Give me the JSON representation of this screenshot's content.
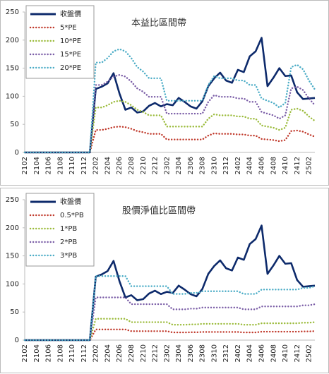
{
  "chart_data": [
    {
      "type": "line",
      "title": "本益比區間帶",
      "categories": [
        "2102",
        null,
        "2104",
        null,
        "2106",
        null,
        "2108",
        null,
        "2110",
        null,
        "2112",
        null,
        "2202",
        null,
        "2204",
        null,
        "2206",
        null,
        "2208",
        null,
        "2210",
        null,
        "2212",
        null,
        "2302",
        null,
        "2304",
        null,
        "2306",
        null,
        "2308",
        null,
        "2310",
        null,
        "2312",
        null,
        "2402",
        null,
        "2404",
        null,
        "2406",
        null,
        "2408",
        null,
        "2410",
        null,
        "2412",
        null,
        "2502",
        null
      ],
      "ylim": [
        0,
        250
      ],
      "yticks": [
        0,
        50,
        100,
        150,
        200,
        250
      ],
      "grid": false,
      "legend": "upper left",
      "series": [
        {
          "name": "收盤價",
          "color": "#0d2a6b",
          "style": "solid",
          "values": [
            0,
            0,
            0,
            0,
            0,
            0,
            0,
            0,
            0,
            0,
            0,
            0,
            113,
            117,
            123,
            141,
            105,
            76,
            80,
            71,
            73,
            83,
            88,
            82,
            86,
            84,
            97,
            90,
            82,
            78,
            91,
            118,
            132,
            142,
            128,
            124,
            147,
            143,
            171,
            180,
            204,
            118,
            133,
            150,
            136,
            137,
            107,
            95,
            96,
            97
          ]
        },
        {
          "name": "5*PE",
          "color": "#c0392b",
          "style": "dotted",
          "values": [
            0,
            0,
            0,
            0,
            0,
            0,
            0,
            0,
            0,
            0,
            0,
            0,
            40,
            40,
            42,
            45,
            46,
            45,
            42,
            38,
            36,
            33,
            33,
            33,
            23,
            23,
            23,
            23,
            23,
            23,
            23,
            30,
            34,
            33,
            33,
            33,
            32,
            32,
            30,
            30,
            24,
            23,
            22,
            20,
            22,
            38,
            39,
            37,
            32,
            28
          ]
        },
        {
          "name": "10*PE",
          "color": "#9bbb3b",
          "style": "dotted",
          "values": [
            0,
            0,
            0,
            0,
            0,
            0,
            0,
            0,
            0,
            0,
            0,
            0,
            80,
            80,
            84,
            90,
            92,
            90,
            84,
            76,
            72,
            66,
            66,
            66,
            46,
            46,
            46,
            46,
            46,
            46,
            46,
            60,
            68,
            66,
            66,
            66,
            64,
            64,
            60,
            60,
            48,
            46,
            44,
            40,
            44,
            76,
            78,
            74,
            64,
            56
          ]
        },
        {
          "name": "15*PE",
          "color": "#7b5ea7",
          "style": "dotted",
          "values": [
            0,
            0,
            0,
            0,
            0,
            0,
            0,
            0,
            0,
            0,
            0,
            0,
            120,
            120,
            126,
            135,
            138,
            135,
            126,
            114,
            108,
            99,
            99,
            99,
            69,
            69,
            69,
            69,
            69,
            69,
            69,
            90,
            102,
            99,
            99,
            99,
            96,
            96,
            90,
            90,
            72,
            69,
            66,
            60,
            66,
            114,
            117,
            111,
            96,
            84
          ]
        },
        {
          "name": "20*PE",
          "color": "#4bacc6",
          "style": "dotted",
          "values": [
            0,
            0,
            0,
            0,
            0,
            0,
            0,
            0,
            0,
            0,
            0,
            0,
            160,
            160,
            168,
            180,
            184,
            180,
            168,
            152,
            144,
            132,
            132,
            132,
            92,
            92,
            92,
            92,
            92,
            92,
            92,
            120,
            136,
            132,
            132,
            132,
            128,
            128,
            120,
            120,
            96,
            92,
            88,
            80,
            88,
            152,
            156,
            148,
            128,
            112
          ]
        }
      ]
    },
    {
      "type": "line",
      "title": "股價淨值比區間帶",
      "categories": [
        "2102",
        null,
        "2104",
        null,
        "2106",
        null,
        "2108",
        null,
        "2110",
        null,
        "2112",
        null,
        "2202",
        null,
        "2204",
        null,
        "2206",
        null,
        "2208",
        null,
        "2210",
        null,
        "2212",
        null,
        "2302",
        null,
        "2304",
        null,
        "2306",
        null,
        "2308",
        null,
        "2310",
        null,
        "2312",
        null,
        "2402",
        null,
        "2404",
        null,
        "2406",
        null,
        "2408",
        null,
        "2410",
        null,
        "2412",
        null,
        "2502",
        null
      ],
      "ylim": [
        0,
        250
      ],
      "yticks": [
        0,
        50,
        100,
        150,
        200,
        250
      ],
      "grid": false,
      "legend": "upper left",
      "series": [
        {
          "name": "收盤價",
          "color": "#0d2a6b",
          "style": "solid",
          "values": [
            0,
            0,
            0,
            0,
            0,
            0,
            0,
            0,
            0,
            0,
            0,
            0,
            113,
            117,
            123,
            141,
            105,
            76,
            80,
            71,
            73,
            83,
            88,
            82,
            86,
            84,
            97,
            90,
            82,
            78,
            91,
            118,
            132,
            142,
            128,
            124,
            147,
            143,
            171,
            180,
            204,
            118,
            133,
            150,
            136,
            137,
            107,
            95,
            96,
            97
          ]
        },
        {
          "name": "0.5*PB",
          "color": "#c0392b",
          "style": "dotted",
          "values": [
            0,
            0,
            0,
            0,
            0,
            0,
            0,
            0,
            0,
            0,
            0,
            0,
            19,
            19,
            19,
            19,
            19,
            19,
            16,
            16,
            16,
            16,
            16,
            16,
            16,
            13.7,
            13.7,
            13.7,
            14,
            14,
            14.5,
            14.5,
            14.5,
            14.5,
            14.5,
            14.5,
            14.5,
            13.7,
            13.7,
            13.7,
            15,
            15,
            15,
            15,
            15,
            15,
            15,
            15.5,
            15.5,
            16
          ]
        },
        {
          "name": "1*PB",
          "color": "#9bbb3b",
          "style": "dotted",
          "values": [
            0,
            0,
            0,
            0,
            0,
            0,
            0,
            0,
            0,
            0,
            0,
            0,
            38,
            38,
            38,
            38,
            38,
            38,
            32,
            32,
            32,
            32,
            32,
            32,
            32,
            27.4,
            27.4,
            27.4,
            28,
            28,
            29,
            29,
            29,
            29,
            29,
            29,
            29,
            27.4,
            27.4,
            27.4,
            30,
            30,
            30,
            30,
            30,
            30,
            30,
            31,
            31,
            32
          ]
        },
        {
          "name": "2*PB",
          "color": "#7b5ea7",
          "style": "dotted",
          "values": [
            0,
            0,
            0,
            0,
            0,
            0,
            0,
            0,
            0,
            0,
            0,
            0,
            76,
            76,
            76,
            76,
            76,
            76,
            64,
            64,
            64,
            64,
            64,
            64,
            64,
            54.8,
            54.8,
            54.8,
            56,
            56,
            58,
            58,
            58,
            58,
            58,
            58,
            58,
            54.8,
            54.8,
            54.8,
            60,
            60,
            60,
            60,
            60,
            60,
            60,
            62,
            62,
            64
          ]
        },
        {
          "name": "3*PB",
          "color": "#4bacc6",
          "style": "dotted",
          "values": [
            0,
            0,
            0,
            0,
            0,
            0,
            0,
            0,
            0,
            0,
            0,
            0,
            114,
            114,
            114,
            114,
            114,
            114,
            96,
            96,
            96,
            96,
            96,
            96,
            96,
            82.2,
            82.2,
            82.2,
            84,
            84,
            87,
            87,
            87,
            87,
            87,
            87,
            87,
            82.2,
            82.2,
            82.2,
            90,
            90,
            90,
            90,
            90,
            90,
            90,
            93,
            93,
            96
          ]
        }
      ]
    }
  ]
}
